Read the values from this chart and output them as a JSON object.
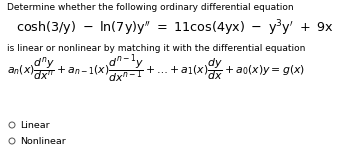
{
  "title_text": "Determine whether the following ordinary differential equation",
  "subtitle_text": "is linear or nonlinear by matching it with the differential equation",
  "option1": "Linear",
  "option2": "Nonlinear",
  "bg_color": "#ffffff",
  "text_color": "#000000",
  "font_size_title": 6.5,
  "font_size_eq": 9.2,
  "font_size_sub": 6.5,
  "font_size_standard": 7.8,
  "font_size_options": 6.8
}
